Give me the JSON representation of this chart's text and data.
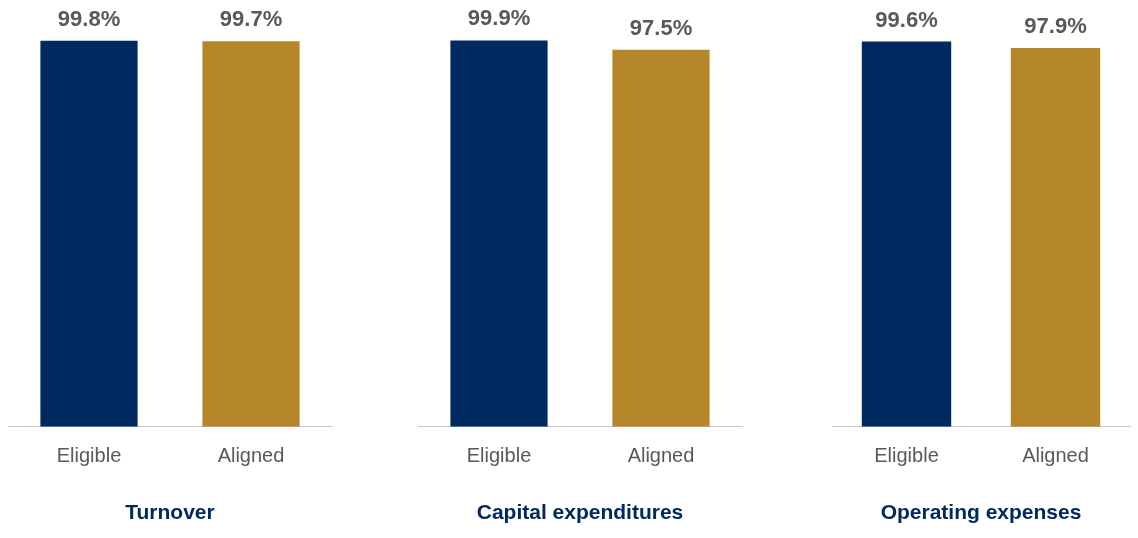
{
  "chart_data": [
    {
      "type": "bar",
      "xlabel": "Turnover",
      "categories": [
        "Eligible",
        "Aligned"
      ],
      "values": [
        99.8,
        99.7
      ],
      "colors": [
        "#002960",
        "#b5862a"
      ],
      "value_labels": [
        "99.8%",
        "99.7%"
      ],
      "tick_labels": "x",
      "grid": false,
      "legend": false
    },
    {
      "type": "bar",
      "xlabel": "Capital expenditures",
      "categories": [
        "Eligible",
        "Aligned"
      ],
      "values": [
        99.9,
        97.5
      ],
      "colors": [
        "#002960",
        "#b5862a"
      ],
      "value_labels": [
        "99.9%",
        "97.5%"
      ],
      "tick_labels": "x",
      "grid": false,
      "legend": false
    },
    {
      "type": "bar",
      "xlabel": "Operating expenses",
      "categories": [
        "Eligible",
        "Aligned"
      ],
      "values": [
        99.6,
        97.9
      ],
      "colors": [
        "#002960",
        "#b5862a"
      ],
      "value_labels": [
        "99.6%",
        "97.9%"
      ],
      "tick_labels": "x",
      "grid": false,
      "legend": false
    }
  ]
}
